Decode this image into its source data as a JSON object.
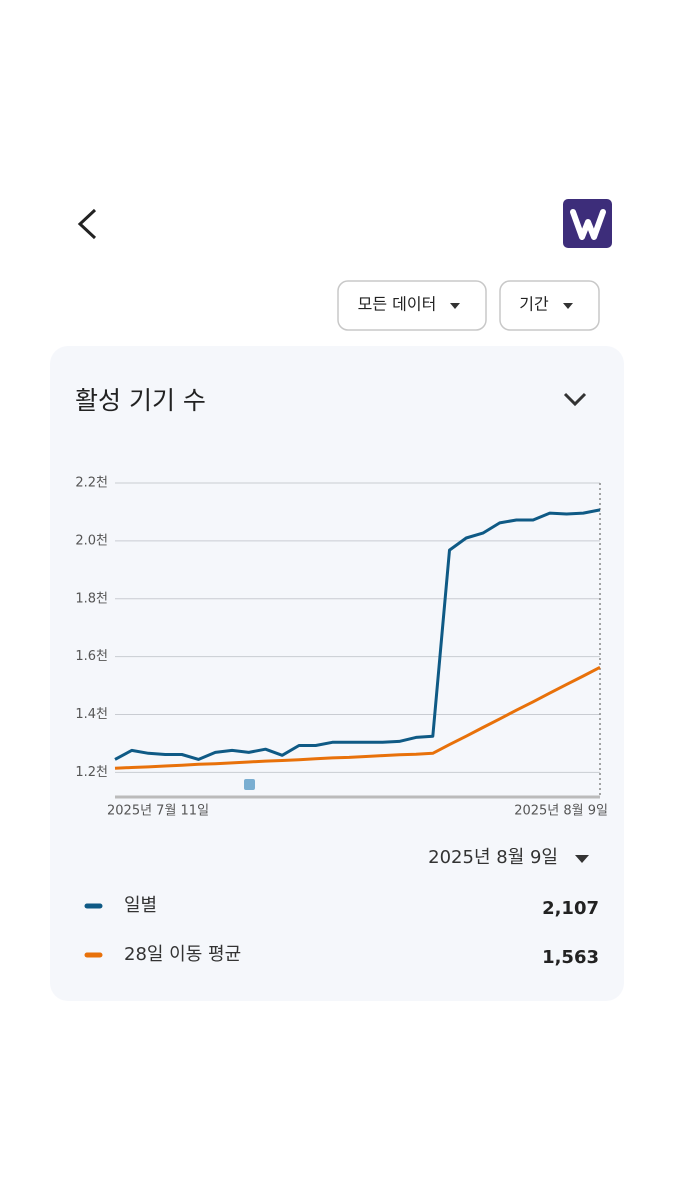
{
  "filters": {
    "data": "모든 데이터",
    "period": "기간"
  },
  "chart_data": {
    "type": "line",
    "title": "활성 기기 수",
    "categories": [
      "2025년 7월 11일",
      null,
      null,
      null,
      null,
      null,
      null,
      null,
      null,
      null,
      null,
      null,
      null,
      null,
      null,
      null,
      null,
      null,
      null,
      null,
      null,
      null,
      null,
      null,
      null,
      null,
      null,
      null,
      null,
      "2025년 8월 9일"
    ],
    "series": [
      {
        "name": "일별",
        "color": "#0f5a85",
        "values": [
          1245,
          1276,
          1266,
          1262,
          1262,
          1245,
          1269,
          1276,
          1269,
          1280,
          1259,
          1293,
          1293,
          1304,
          1304,
          1304,
          1304,
          1307,
          1321,
          1325,
          1968,
          2010,
          2027,
          2062,
          2072,
          2072,
          2096,
          2093,
          2096,
          2107
        ],
        "value_labels": [
          null,
          null,
          null,
          null,
          null,
          null,
          null,
          null,
          null,
          null,
          null,
          null,
          null,
          null,
          null,
          null,
          null,
          null,
          null,
          null,
          null,
          null,
          null,
          null,
          null,
          null,
          null,
          null,
          null,
          "2,107"
        ]
      },
      {
        "name": "28일 이동 평균",
        "color": "#e8710a",
        "values": [
          1214,
          1217,
          1219,
          1222,
          1225,
          1228,
          1230,
          1233,
          1236,
          1239,
          1241,
          1244,
          1247,
          1250,
          1252,
          1255,
          1258,
          1261,
          1263,
          1266,
          1296,
          1325,
          1355,
          1385,
          1415,
          1444,
          1474,
          1504,
          1533,
          1563
        ],
        "value_labels": [
          null,
          null,
          null,
          null,
          null,
          null,
          null,
          null,
          null,
          null,
          null,
          null,
          null,
          null,
          null,
          null,
          null,
          null,
          null,
          null,
          null,
          null,
          null,
          null,
          null,
          null,
          null,
          null,
          null,
          "1,563"
        ]
      }
    ],
    "ylim": [
      1115,
      2200
    ],
    "yticks": [
      {
        "value": 1200,
        "label": "1.2천"
      },
      {
        "value": 1400,
        "label": "1.4천"
      },
      {
        "value": 1600,
        "label": "1.6천"
      },
      {
        "value": 1800,
        "label": "1.8천"
      },
      {
        "value": 2000,
        "label": "2.0천"
      },
      {
        "value": 2200,
        "label": "2.2천"
      }
    ],
    "grid": true,
    "selected_date": "2025년 8월 9일"
  }
}
